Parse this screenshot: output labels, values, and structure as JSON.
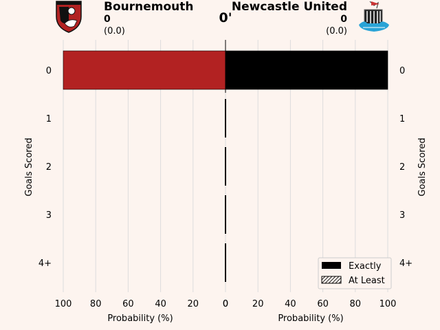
{
  "match": {
    "minute": "0'",
    "home": {
      "name": "Bournemouth",
      "score": "0",
      "xg": "(0.0)",
      "color": "#b22222",
      "logo": "bournemouth-crest"
    },
    "away": {
      "name": "Newcastle United",
      "score": "0",
      "xg": "(0.0)",
      "color": "#000000",
      "logo": "newcastle-crest"
    }
  },
  "chart_data": {
    "type": "bar",
    "orientation": "horizontal",
    "categories": [
      "0",
      "1",
      "2",
      "3",
      "4+"
    ],
    "series": [
      {
        "name": "Bournemouth",
        "side": "left",
        "exactly": [
          100,
          0,
          0,
          0,
          0
        ],
        "at_least": [
          100,
          0,
          0,
          0,
          0
        ],
        "color": "#b22222"
      },
      {
        "name": "Newcastle United",
        "side": "right",
        "exactly": [
          100,
          0,
          0,
          0,
          0
        ],
        "at_least": [
          100,
          0,
          0,
          0,
          0
        ],
        "color": "#000000"
      }
    ],
    "x_ticks": [
      "100",
      "80",
      "60",
      "40",
      "20",
      "0"
    ],
    "x_ticks_right": [
      "0",
      "20",
      "40",
      "60",
      "80",
      "100"
    ],
    "xlim": [
      0,
      100
    ],
    "xlabel": "Probability (%)",
    "ylabel": "Goals Scored",
    "grid": true,
    "legend": {
      "position": "bottom-right",
      "entries": [
        "Exactly",
        "At Least"
      ]
    }
  }
}
